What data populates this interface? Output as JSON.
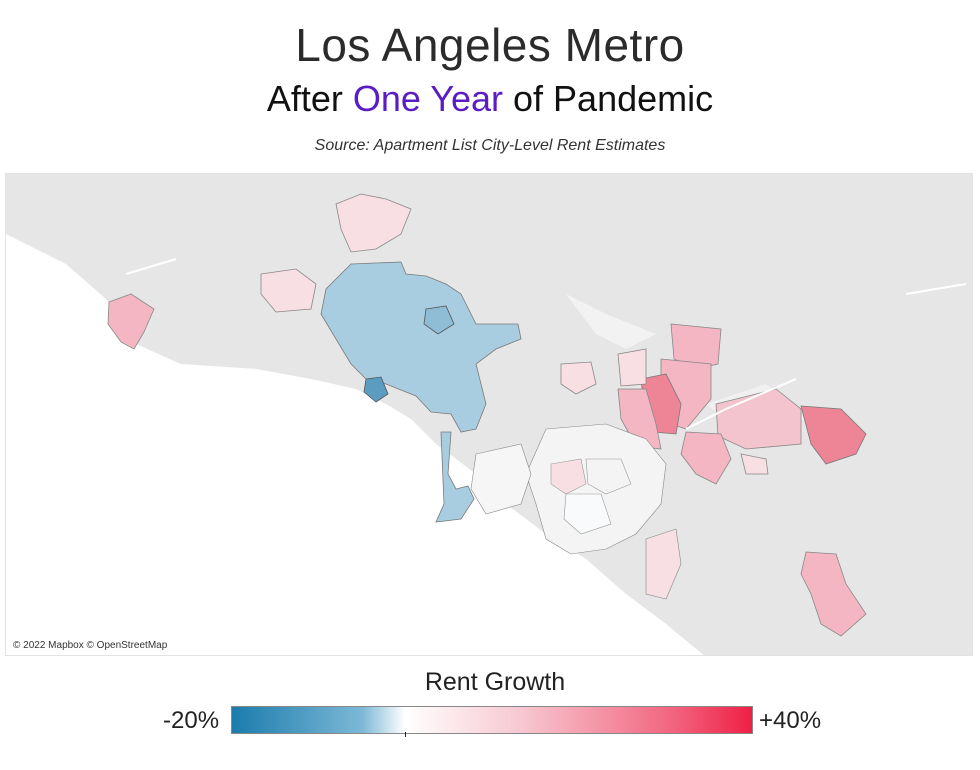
{
  "header": {
    "title": "Los Angeles Metro",
    "subtitle_pre": "After ",
    "subtitle_highlight": "One Year",
    "subtitle_post": " of Pandemic",
    "source": "Source: Apartment List City-Level Rent Estimates"
  },
  "map": {
    "attribution": "© 2022 Mapbox © OpenStreetMap",
    "colors": {
      "land": "#e6e6e6",
      "water": "#ffffff",
      "negative": "#a9cde0",
      "strong_negative": "#5c9cc0",
      "neutral": "#f4f4f4",
      "light_positive": "#f7dfe4",
      "positive": "#f3b6c2",
      "strong_positive": "#ee8597"
    }
  },
  "legend": {
    "title": "Rent Growth",
    "min_label": "-20%",
    "max_label": "+40%"
  }
}
